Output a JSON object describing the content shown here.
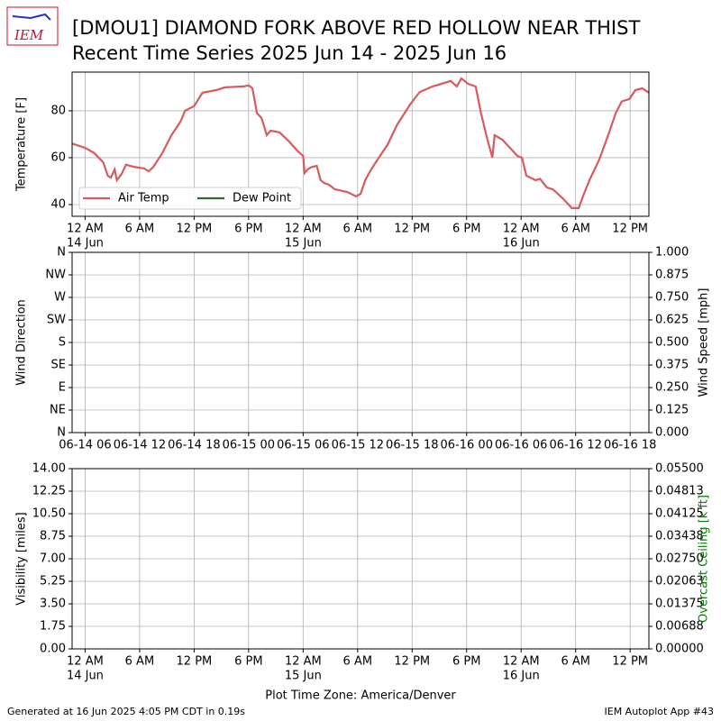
{
  "logo": "IEM",
  "footer": {
    "left": "Generated at 16 Jun 2025 4:05 PM CDT in 0.19s",
    "right": "IEM Autoplot App #43"
  },
  "chart_data": [
    {
      "type": "line",
      "title": "[DMOU1] DIAMOND FORK ABOVE RED HOLLOW NEAR THIST",
      "subtitle": "Recent Time Series 2025 Jun 14 - 2025 Jun 16",
      "ylabel": "Temperature [F]",
      "xlim": [
        "06-13 22:34",
        "06-16 14:04"
      ],
      "ylim": [
        35,
        96.5
      ],
      "yticks": [
        40,
        60,
        80
      ],
      "xticks": [
        {
          "value": "06-14 00:00",
          "label": "12 AM",
          "date": "14 Jun"
        },
        {
          "value": "06-14 06:00",
          "label": "6 AM"
        },
        {
          "value": "06-14 12:00",
          "label": "12 PM"
        },
        {
          "value": "06-14 18:00",
          "label": "6 PM"
        },
        {
          "value": "06-15 00:00",
          "label": "12 AM",
          "date": "15 Jun"
        },
        {
          "value": "06-15 06:00",
          "label": "6 AM"
        },
        {
          "value": "06-15 12:00",
          "label": "12 PM"
        },
        {
          "value": "06-15 18:00",
          "label": "6 PM"
        },
        {
          "value": "06-16 00:00",
          "label": "12 AM",
          "date": "16 Jun"
        },
        {
          "value": "06-16 06:00",
          "label": "6 AM"
        },
        {
          "value": "06-16 12:00",
          "label": "12 PM"
        }
      ],
      "grid": true,
      "legend": "lower left",
      "series": [
        {
          "name": "Air Temp",
          "color": "#d9595f",
          "x": [
            "06-13 22:34",
            "06-14 00:00",
            "06-14 01:00",
            "06-14 02:00",
            "06-14 02:30",
            "06-14 02:50",
            "06-14 03:15",
            "06-14 03:30",
            "06-14 04:00",
            "06-14 04:30",
            "06-14 05:30",
            "06-14 06:30",
            "06-14 07:00",
            "06-14 07:30",
            "06-14 08:30",
            "06-14 09:30",
            "06-14 10:30",
            "06-14 11:00",
            "06-14 12:00",
            "06-14 12:55",
            "06-14 14:25",
            "06-14 15:25",
            "06-14 17:25",
            "06-14 18:00",
            "06-14 18:25",
            "06-14 18:55",
            "06-14 19:25",
            "06-14 20:00",
            "06-14 20:25",
            "06-14 21:25",
            "06-14 22:25",
            "06-14 23:25",
            "06-15 00:00",
            "06-15 00:10",
            "06-15 00:30",
            "06-15 00:55",
            "06-15 01:30",
            "06-15 01:55",
            "06-15 02:20",
            "06-15 02:50",
            "06-15 03:30",
            "06-15 04:50",
            "06-15 05:50",
            "06-15 06:20",
            "06-15 06:50",
            "06-15 07:30",
            "06-15 08:20",
            "06-15 09:20",
            "06-15 10:20",
            "06-15 11:50",
            "06-15 12:50",
            "06-15 14:15",
            "06-15 16:15",
            "06-15 16:55",
            "06-15 17:25",
            "06-15 18:10",
            "06-15 19:00",
            "06-15 19:35",
            "06-15 20:10",
            "06-15 20:50",
            "06-15 21:05",
            "06-15 21:55",
            "06-15 22:35",
            "06-15 23:35",
            "06-16 00:05",
            "06-16 00:35",
            "06-16 01:35",
            "06-16 02:05",
            "06-16 02:50",
            "06-16 03:30",
            "06-16 04:35",
            "06-16 05:35",
            "06-16 06:20",
            "06-16 06:55",
            "06-16 07:35",
            "06-16 08:35",
            "06-16 09:35",
            "06-16 10:25",
            "06-16 11:05",
            "06-16 11:55",
            "06-16 12:35",
            "06-16 13:20",
            "06-16 14:04"
          ],
          "values": [
            66,
            64.2,
            62,
            58,
            52.3,
            51.5,
            55,
            50.4,
            53,
            57,
            56,
            55.4,
            54.2,
            56,
            62,
            69.6,
            75.4,
            80,
            82,
            87.7,
            88.8,
            90,
            90.4,
            90.8,
            89.6,
            79,
            77,
            69.6,
            71.5,
            70.8,
            67,
            62.7,
            60.8,
            53.5,
            55,
            56,
            56.5,
            50.4,
            49.2,
            48.5,
            46.5,
            45.4,
            43.5,
            44.6,
            50.4,
            55,
            60,
            65.8,
            74,
            83,
            88,
            90.4,
            92.7,
            90.4,
            93.8,
            91.5,
            90.4,
            79,
            69.6,
            60,
            69.6,
            67.7,
            65,
            60.8,
            60,
            52.3,
            50.4,
            51,
            47.3,
            46.5,
            42.7,
            38.5,
            38.5,
            44.6,
            51,
            59,
            69.6,
            79,
            84,
            85,
            88.8,
            89.6,
            87.7
          ]
        },
        {
          "name": "Dew Point",
          "color": "#2e6b30",
          "x": [],
          "values": []
        }
      ]
    },
    {
      "type": "line",
      "ylabel": "Wind Direction",
      "y2label": "Wind Speed [mph]",
      "xlim": [
        "06-13 22:34",
        "06-16 14:04"
      ],
      "ylim": [
        0,
        360
      ],
      "yticks": [
        {
          "value": 0,
          "label": "N"
        },
        {
          "value": 45,
          "label": "NE"
        },
        {
          "value": 90,
          "label": "E"
        },
        {
          "value": 135,
          "label": "SE"
        },
        {
          "value": 180,
          "label": "S"
        },
        {
          "value": 225,
          "label": "SW"
        },
        {
          "value": 270,
          "label": "W"
        },
        {
          "value": 315,
          "label": "NW"
        },
        {
          "value": 360,
          "label": "N"
        }
      ],
      "y2lim": [
        0,
        1
      ],
      "y2ticks": [
        {
          "value": 0,
          "label": "0.000"
        },
        {
          "value": 0.125,
          "label": "0.125"
        },
        {
          "value": 0.25,
          "label": "0.250"
        },
        {
          "value": 0.375,
          "label": "0.375"
        },
        {
          "value": 0.5,
          "label": "0.500"
        },
        {
          "value": 0.625,
          "label": "0.625"
        },
        {
          "value": 0.75,
          "label": "0.750"
        },
        {
          "value": 0.875,
          "label": "0.875"
        },
        {
          "value": 1,
          "label": "1.000"
        }
      ],
      "xticks": [
        {
          "value": "06-14 00:00",
          "label": "06-14 06"
        },
        {
          "value": "06-14 06:00",
          "label": "06-14 12"
        },
        {
          "value": "06-14 12:00",
          "label": "06-14 18"
        },
        {
          "value": "06-14 18:00",
          "label": "06-15 00"
        },
        {
          "value": "06-15 00:00",
          "label": "06-15 06"
        },
        {
          "value": "06-15 06:00",
          "label": "06-15 12"
        },
        {
          "value": "06-15 12:00",
          "label": "06-15 18"
        },
        {
          "value": "06-15 18:00",
          "label": "06-16 00"
        },
        {
          "value": "06-16 00:00",
          "label": "06-16 06"
        },
        {
          "value": "06-16 06:00",
          "label": "06-16 12"
        },
        {
          "value": "06-16 12:00",
          "label": "06-16 18"
        }
      ],
      "grid": true,
      "series": []
    },
    {
      "type": "line",
      "ylabel": "Visibility [miles]",
      "y2label": "Overcast Ceiling [k ft]",
      "y2label_color": "#008000",
      "xlabel": "Plot Time Zone: America/Denver",
      "xlim": [
        "06-13 22:34",
        "06-16 14:04"
      ],
      "ylim": [
        0,
        14
      ],
      "yticks": [
        {
          "value": 0,
          "label": "0.00"
        },
        1.75,
        {
          "value": 3.5,
          "label": "3.50"
        },
        5.25,
        {
          "value": 7,
          "label": "7.00"
        },
        8.75,
        {
          "value": 10.5,
          "label": "10.50"
        },
        12.25,
        {
          "value": 14,
          "label": "14.00"
        }
      ],
      "y2lim": [
        0,
        0.055
      ],
      "y2ticks": [
        {
          "value": 0,
          "label": "0.00000"
        },
        {
          "value": 0.006875,
          "label": "0.00688"
        },
        {
          "value": 0.01375,
          "label": "0.01375"
        },
        {
          "value": 0.020625,
          "label": "0.02063"
        },
        {
          "value": 0.0275,
          "label": "0.02750"
        },
        {
          "value": 0.034375,
          "label": "0.03438"
        },
        {
          "value": 0.04125,
          "label": "0.04125"
        },
        {
          "value": 0.048125,
          "label": "0.04813"
        },
        {
          "value": 0.055,
          "label": "0.05500"
        }
      ],
      "xticks": [
        {
          "value": "06-14 00:00",
          "label": "12 AM",
          "date": "14 Jun"
        },
        {
          "value": "06-14 06:00",
          "label": "6 AM"
        },
        {
          "value": "06-14 12:00",
          "label": "12 PM"
        },
        {
          "value": "06-14 18:00",
          "label": "6 PM"
        },
        {
          "value": "06-15 00:00",
          "label": "12 AM",
          "date": "15 Jun"
        },
        {
          "value": "06-15 06:00",
          "label": "6 AM"
        },
        {
          "value": "06-15 12:00",
          "label": "12 PM"
        },
        {
          "value": "06-15 18:00",
          "label": "6 PM"
        },
        {
          "value": "06-16 00:00",
          "label": "12 AM",
          "date": "16 Jun"
        },
        {
          "value": "06-16 06:00",
          "label": "6 AM"
        },
        {
          "value": "06-16 12:00",
          "label": "12 PM"
        }
      ],
      "grid": true,
      "series": []
    }
  ]
}
